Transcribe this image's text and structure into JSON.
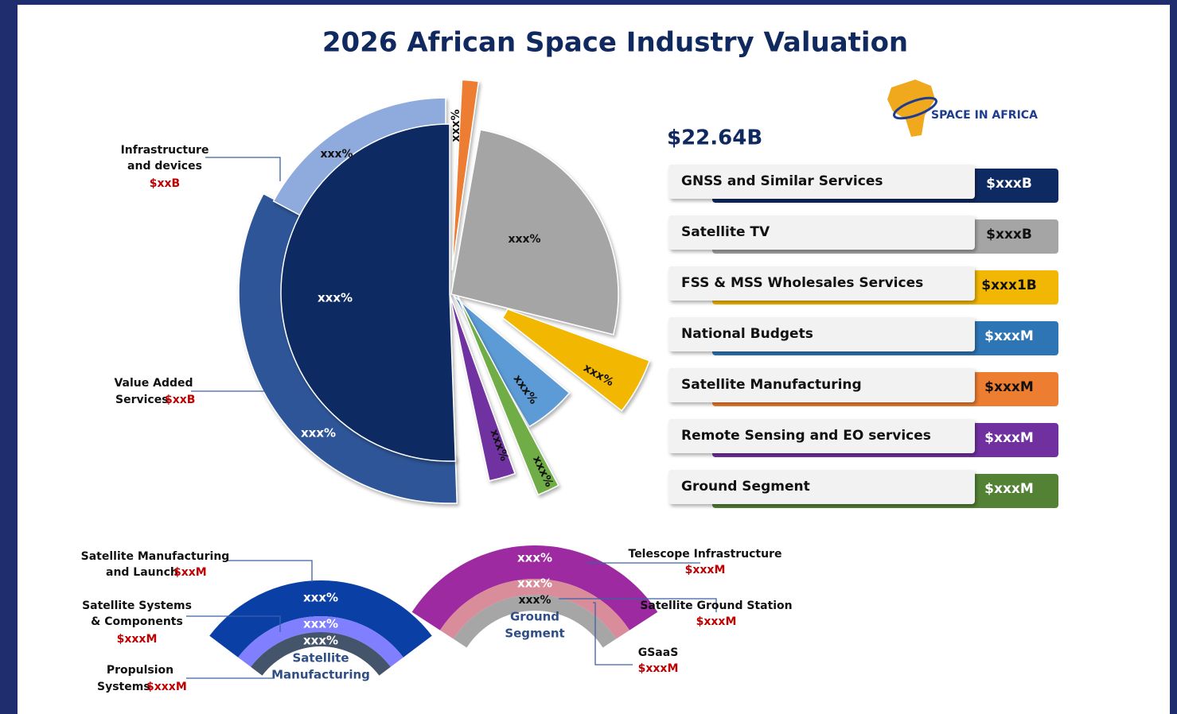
{
  "title": "2026 African Space Industry Valuation",
  "logo": "SPACE IN AFRICA",
  "total": "$22.64B",
  "legend": [
    {
      "label": "GNSS and Similar Services",
      "value": "$xxxB"
    },
    {
      "label": "Satellite TV",
      "value": "$xxxB"
    },
    {
      "label": "FSS & MSS Wholesales Services",
      "value": "$xxx1B"
    },
    {
      "label": "National Budgets",
      "value": "$xxxM"
    },
    {
      "label": "Satellite Manufacturing",
      "value": "$xxxM"
    },
    {
      "label": "Remote Sensing and EO services",
      "value": "$xxxM"
    },
    {
      "label": "Ground Segment",
      "value": "$xxxM"
    }
  ],
  "pie_labels": {
    "infrastructure": "xxx%",
    "orange": "xxx%",
    "grey": "xxx%",
    "navy": "xxx%",
    "yellow": "xxx%",
    "lightblue": "xxx%",
    "purple": "xxx%",
    "green": "xxx%",
    "value_added": "xxx%"
  },
  "callouts": {
    "infrastructure": {
      "lines": [
        "Infrastructure",
        "and devices"
      ],
      "value": "$xxB"
    },
    "value_added": {
      "lines": [
        "Value Added",
        "Services"
      ],
      "value": "$xxB"
    }
  },
  "satellite_manufacturing": {
    "center": [
      "Satellite",
      "Manufacturing"
    ],
    "rings": [
      "xxx%",
      "xxx%",
      "xxx%"
    ],
    "callouts": [
      {
        "lines": [
          "Satellite Manufacturing",
          "and Launch"
        ],
        "value": "$xxM"
      },
      {
        "lines": [
          "Satellite Systems",
          "& Components"
        ],
        "value": "$xxxM"
      },
      {
        "lines": [
          "Propulsion",
          "Systems"
        ],
        "value": "$xxxM"
      }
    ]
  },
  "ground_segment": {
    "center": [
      "Ground",
      "Segment"
    ],
    "rings": [
      "xxx%",
      "xxx%",
      "xxx%"
    ],
    "callouts": [
      {
        "lines": [
          "Telescope Infrastructure"
        ],
        "value": "$xxxM"
      },
      {
        "lines": [
          "Satellite Ground Station"
        ],
        "value": "$xxxM"
      },
      {
        "lines": [
          "GSaaS"
        ],
        "value": "$xxxM"
      }
    ]
  }
}
